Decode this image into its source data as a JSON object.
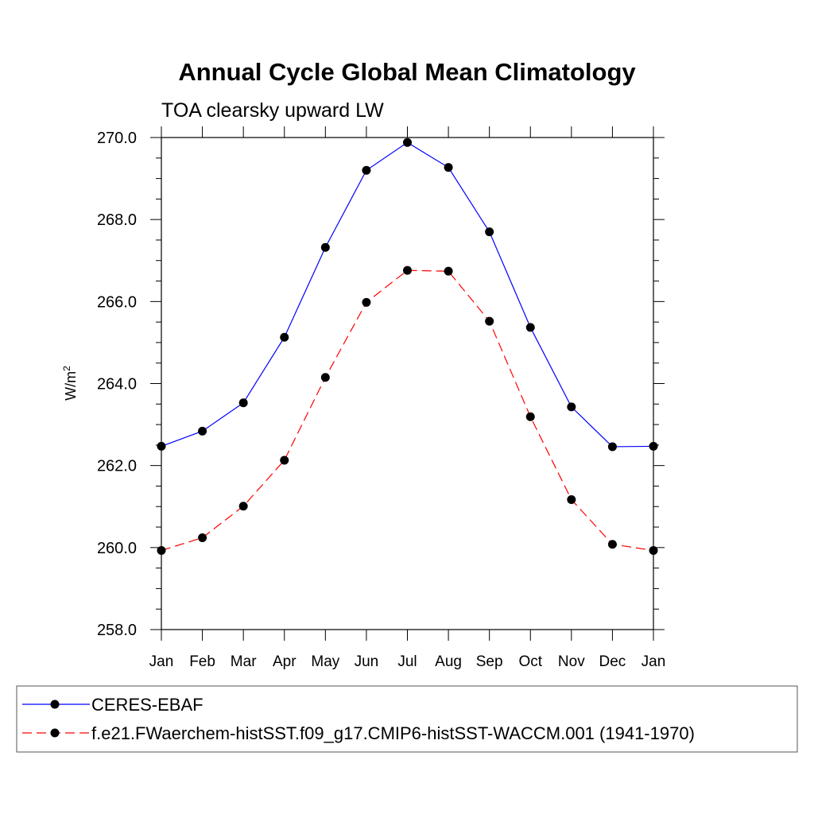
{
  "chart_data": {
    "type": "line",
    "title": "Annual Cycle Global Mean Climatology",
    "subtitle": "TOA clearsky upward LW",
    "ylabel": "W/m",
    "ylabel_superscript": "2",
    "xlabel": "",
    "categories": [
      "Jan",
      "Feb",
      "Mar",
      "Apr",
      "May",
      "Jun",
      "Jul",
      "Aug",
      "Sep",
      "Oct",
      "Nov",
      "Dec",
      "Jan"
    ],
    "ylim": [
      258.0,
      270.0
    ],
    "yticks": [
      "258.0",
      "260.0",
      "262.0",
      "264.0",
      "266.0",
      "268.0",
      "270.0"
    ],
    "grid": false,
    "legend_position": "bottom",
    "series": [
      {
        "name": "CERES-EBAF",
        "color": "#0000ff",
        "line_style": "solid",
        "marker": "filled-circle",
        "values": [
          262.47,
          262.84,
          263.53,
          265.13,
          267.32,
          269.2,
          269.88,
          269.27,
          267.7,
          265.37,
          263.43,
          262.46,
          262.47
        ]
      },
      {
        "name": "f.e21.FWaerchem-histSST.f09_g17.CMIP6-histSST-WACCM.001 (1941-1970)",
        "color": "#ff0000",
        "line_style": "dashed",
        "marker": "filled-circle",
        "values": [
          259.93,
          260.24,
          261.01,
          262.13,
          264.15,
          265.98,
          266.76,
          266.74,
          265.52,
          263.19,
          261.17,
          260.08,
          259.93
        ]
      }
    ]
  }
}
